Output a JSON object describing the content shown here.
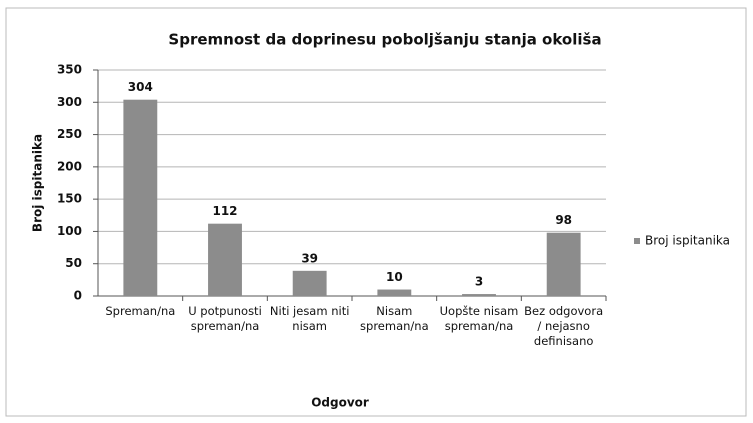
{
  "chart_data": {
    "type": "bar",
    "title": "Spremnost da doprinesu poboljšanju stanja okoliša",
    "x_label": "Odgovor",
    "y_label": "Broj ispitanika",
    "categories": [
      "Spreman/na",
      "U potpunosti spreman/na",
      "Niti jesam niti nisam",
      "Nisam spreman/na",
      "Uopšte nisam spreman/na",
      "Bez odgovora / nejasno definisano"
    ],
    "series": [
      {
        "name": "Broj ispitanika",
        "color": "#8c8c8c",
        "values": [
          304,
          112,
          39,
          10,
          3,
          98
        ]
      }
    ],
    "ylim": [
      0,
      350
    ],
    "yticks": [
      0,
      50,
      100,
      150,
      200,
      250,
      300,
      350
    ],
    "grid": true,
    "legend": "right"
  }
}
